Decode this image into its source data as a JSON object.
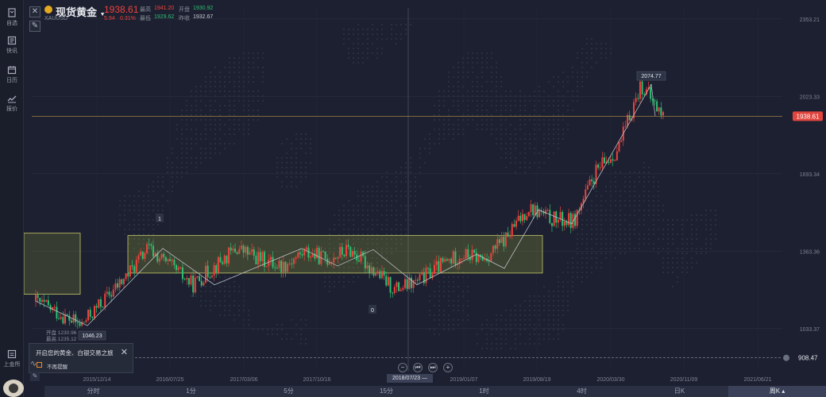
{
  "sidebar": {
    "items": [
      {
        "label": "自选",
        "icon": "bookmark-icon"
      },
      {
        "label": "快讯",
        "icon": "news-icon"
      },
      {
        "label": "日历",
        "icon": "calendar-icon"
      },
      {
        "label": "报价",
        "icon": "quote-chart-icon"
      },
      {
        "label": "上金所",
        "icon": "exchange-icon"
      }
    ]
  },
  "header": {
    "title": "现货黄金",
    "code": "XAUUSD",
    "price": "1938.61",
    "change": "5.94",
    "change_pct": "0.31%",
    "high_label": "最高",
    "high": "1941.20",
    "low_label": "最低",
    "low": "1929.62",
    "open_label": "开盘",
    "open": "1930.92",
    "prev_close_label": "昨收",
    "prev_close": "1932.67"
  },
  "chart": {
    "y_ticks": [
      "2353.21",
      "2023.33",
      "1693.34",
      "1363.36",
      "1033.37"
    ],
    "x_ticks": [
      "2015/12/14",
      "2016/07/25",
      "2017/03/06",
      "2017/10/16",
      "2019/01/07",
      "2019/08/19",
      "2020/03/30",
      "2020/11/09",
      "2021/06/21"
    ],
    "current_price_tag": "1938.61",
    "alert_price_tag": "908.47",
    "peak_label": "2074.77",
    "trough_label": "1046.23",
    "marker_1": "1",
    "marker_0": "0",
    "cursor_date": "2018/07/23",
    "ohlc_overlay": {
      "open": "开盘 1230.96",
      "high": "最高 1235.12"
    }
  },
  "chart_data": {
    "type": "candlestick",
    "title": "现货黄金",
    "y_ticks": [
      2353.21,
      2023.33,
      1693.34,
      1363.36,
      1033.37
    ],
    "x_ticks": [
      "2015/12/14",
      "2016/07/25",
      "2017/03/06",
      "2017/10/16",
      "2019/01/07",
      "2019/08/19",
      "2020/03/30",
      "2020/11/09",
      "2021/06/21"
    ],
    "annotations": [
      {
        "text": "2074.77",
        "value": 2074.77
      },
      {
        "text": "1046.23",
        "value": 1046.23
      },
      {
        "text": "1938.61",
        "value": 1938.61
      },
      {
        "text": "908.47",
        "value": 908.47
      }
    ],
    "trend_path": [
      1150,
      1100,
      1046,
      1150,
      1250,
      1375,
      1300,
      1220,
      1300,
      1375,
      1330,
      1300,
      1360,
      1330,
      1370,
      1290,
      1200,
      1230,
      1300,
      1350,
      1330,
      1420,
      1550,
      1500,
      1490,
      1700,
      1800,
      2074,
      1938
    ]
  },
  "promo": {
    "text": "开启您的黄金、白银交易之旅",
    "checkbox_label": "不再提醒"
  },
  "tabs": [
    "分时",
    "1分",
    "5分",
    "15分",
    "1时",
    "4时",
    "日K",
    "周K"
  ],
  "active_tab": "周K",
  "colors": {
    "up": "#f0423c",
    "down": "#2fbf71",
    "accent": "#e4a821"
  }
}
